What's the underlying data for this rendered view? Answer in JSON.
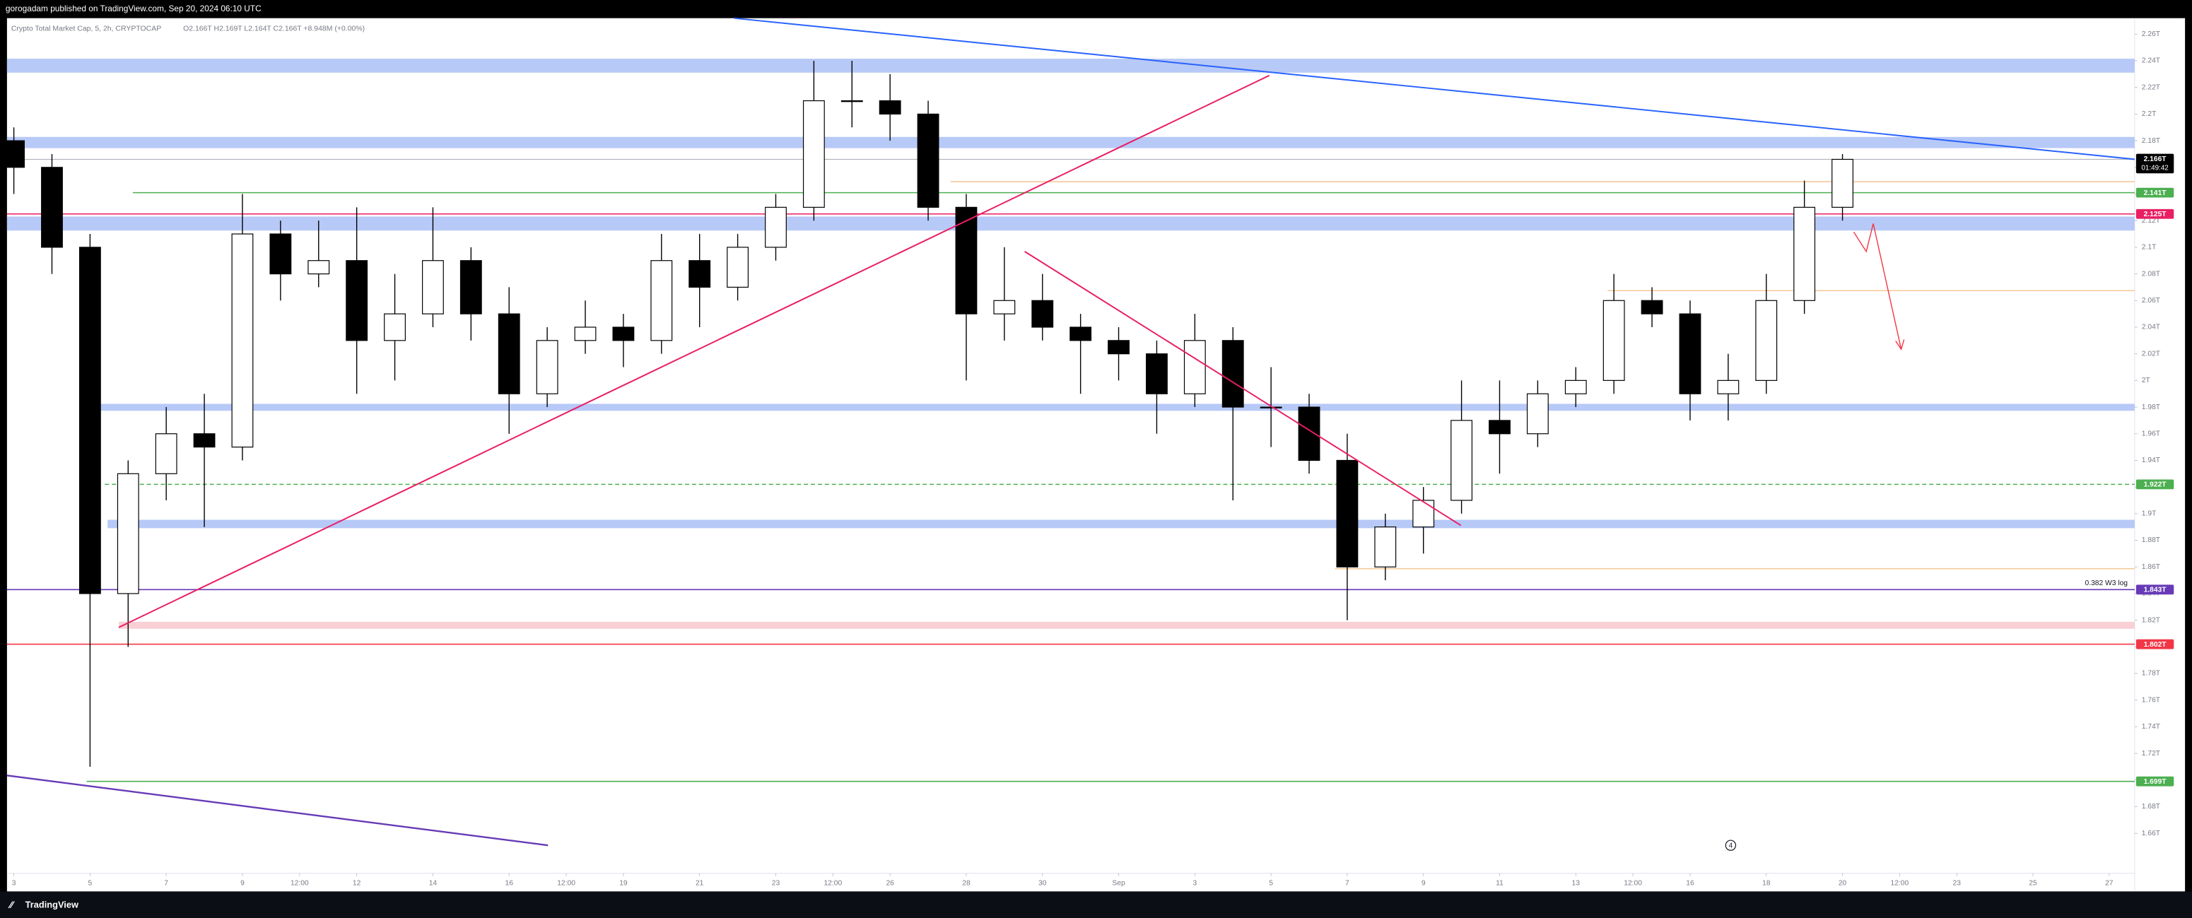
{
  "header": {
    "published": "gorogadam published on TradingView.com, Sep 20, 2024 06:10 UTC"
  },
  "legend": {
    "symbol": "Crypto Total Market Cap, 5, 2h, CRYPTOCAP",
    "ohlc": "O2.166T H2.169T L2.164T C2.166T +8.948M (+0.00%)"
  },
  "footer": {
    "brand": "TradingView"
  },
  "marker": {
    "label": "4"
  },
  "chart_data": {
    "type": "candlestick",
    "x": [
      3,
      4,
      5,
      6,
      7,
      8,
      9,
      10,
      11,
      12,
      13,
      14,
      15,
      16,
      17,
      18,
      19,
      20,
      21,
      22,
      23,
      24,
      25,
      26,
      27,
      28,
      29,
      30,
      31,
      32,
      33,
      34,
      35,
      36,
      37,
      38,
      39,
      40,
      41,
      42,
      43,
      44,
      45,
      46,
      47,
      48,
      49,
      50,
      51
    ],
    "open": [
      2.18,
      2.16,
      2.1,
      1.84,
      1.93,
      1.96,
      1.95,
      2.11,
      2.08,
      2.09,
      2.03,
      2.05,
      2.09,
      2.05,
      1.99,
      2.03,
      2.04,
      2.03,
      2.09,
      2.07,
      2.1,
      2.13,
      2.21,
      2.21,
      2.2,
      2.13,
      2.05,
      2.06,
      2.04,
      2.03,
      2.02,
      1.99,
      2.03,
      1.98,
      1.98,
      1.94,
      1.86,
      1.89,
      1.91,
      1.97,
      1.96,
      1.99,
      2.0,
      2.06,
      2.05,
      1.99,
      2.0,
      2.06,
      2.13
    ],
    "high": [
      2.19,
      2.17,
      2.11,
      1.94,
      1.98,
      1.99,
      2.14,
      2.12,
      2.12,
      2.13,
      2.08,
      2.13,
      2.1,
      2.07,
      2.04,
      2.06,
      2.05,
      2.11,
      2.11,
      2.11,
      2.14,
      2.24,
      2.24,
      2.23,
      2.21,
      2.14,
      2.1,
      2.08,
      2.05,
      2.04,
      2.03,
      2.05,
      2.04,
      2.01,
      1.99,
      1.96,
      1.9,
      1.92,
      2.0,
      2.0,
      2.0,
      2.01,
      2.08,
      2.07,
      2.06,
      2.02,
      2.08,
      2.15,
      2.17
    ],
    "low": [
      2.14,
      2.08,
      1.71,
      1.8,
      1.91,
      1.89,
      1.94,
      2.06,
      2.07,
      1.99,
      2.0,
      2.04,
      2.03,
      1.96,
      1.98,
      2.02,
      2.01,
      2.02,
      2.04,
      2.06,
      2.09,
      2.12,
      2.19,
      2.18,
      2.12,
      2.0,
      2.03,
      2.03,
      1.99,
      2.0,
      1.96,
      1.98,
      1.91,
      1.95,
      1.93,
      1.82,
      1.85,
      1.87,
      1.9,
      1.93,
      1.95,
      1.98,
      1.99,
      2.04,
      1.97,
      1.97,
      1.99,
      2.05,
      2.12
    ],
    "close": [
      2.16,
      2.1,
      1.84,
      1.93,
      1.96,
      1.95,
      2.11,
      2.08,
      2.09,
      2.03,
      2.05,
      2.09,
      2.05,
      1.99,
      2.03,
      2.04,
      2.03,
      2.09,
      2.07,
      2.1,
      2.13,
      2.21,
      2.21,
      2.2,
      2.13,
      2.05,
      2.06,
      2.04,
      2.03,
      2.02,
      1.99,
      2.03,
      1.98,
      1.98,
      1.94,
      1.86,
      1.89,
      1.91,
      1.97,
      1.96,
      1.99,
      2.0,
      2.06,
      2.05,
      1.99,
      2.0,
      2.06,
      2.13,
      2.166
    ],
    "up_color": "#ffffff",
    "down_color": "#000000",
    "outline_color": "#000000",
    "xlim": [
      2.82,
      58.67
    ],
    "xticks": [
      3,
      5,
      7,
      9,
      {
        "value": 10.5,
        "label": "12:00"
      },
      12,
      14,
      16,
      {
        "value": 17.5,
        "label": "12:00"
      },
      19,
      21,
      23,
      {
        "value": 24.5,
        "label": "12:00"
      },
      26,
      28,
      30,
      {
        "value": 32,
        "label": "Sep"
      },
      {
        "value": 34,
        "label": "3"
      },
      {
        "value": 36,
        "label": "5"
      },
      {
        "value": 38,
        "label": "7"
      },
      {
        "value": 40,
        "label": "9"
      },
      {
        "value": 42,
        "label": "11"
      },
      {
        "value": 44,
        "label": "13"
      },
      {
        "value": 45.5,
        "label": "12:00"
      },
      {
        "value": 47,
        "label": "16"
      },
      {
        "value": 49,
        "label": "18"
      },
      {
        "value": 51,
        "label": "20"
      },
      {
        "value": 52.5,
        "label": "12:00"
      },
      {
        "value": 54,
        "label": "23"
      },
      {
        "value": 56,
        "label": "25"
      },
      {
        "value": 58,
        "label": "27"
      }
    ],
    "ylim": [
      1.63,
      2.272
    ],
    "yticks": [
      {
        "value": 1.66,
        "label": "1.66T"
      },
      {
        "value": 1.68,
        "label": "1.68T"
      },
      {
        "value": 1.7,
        "label": "1.7T"
      },
      {
        "value": 1.72,
        "label": "1.72T"
      },
      {
        "value": 1.74,
        "label": "1.74T"
      },
      {
        "value": 1.76,
        "label": "1.76T"
      },
      {
        "value": 1.78,
        "label": "1.78T"
      },
      {
        "value": 1.8,
        "label": "1.8T"
      },
      {
        "value": 1.82,
        "label": "1.82T"
      },
      {
        "value": 1.84,
        "label": "1.84T"
      },
      {
        "value": 1.86,
        "label": "1.86T"
      },
      {
        "value": 1.88,
        "label": "1.88T"
      },
      {
        "value": 1.9,
        "label": "1.9T"
      },
      {
        "value": 1.92,
        "label": "1.92T"
      },
      {
        "value": 1.94,
        "label": "1.94T"
      },
      {
        "value": 1.96,
        "label": "1.96T"
      },
      {
        "value": 1.98,
        "label": "1.98T"
      },
      {
        "value": 2.0,
        "label": "2T"
      },
      {
        "value": 2.02,
        "label": "2.02T"
      },
      {
        "value": 2.04,
        "label": "2.04T"
      },
      {
        "value": 2.06,
        "label": "2.06T"
      },
      {
        "value": 2.08,
        "label": "2.08T"
      },
      {
        "value": 2.1,
        "label": "2.1T"
      },
      {
        "value": 2.12,
        "label": "2.12T"
      },
      {
        "value": 2.14,
        "label": "2.14T"
      },
      {
        "value": 2.16,
        "label": "2.16T"
      },
      {
        "value": 2.18,
        "label": "2.18T"
      },
      {
        "value": 2.2,
        "label": "2.2T"
      },
      {
        "value": 2.22,
        "label": "2.22T"
      },
      {
        "value": 2.24,
        "label": "2.24T"
      },
      {
        "value": 2.26,
        "label": "2.26T"
      }
    ],
    "grid": false,
    "last_price": {
      "label": "2.166T",
      "countdown": "01:49:42",
      "color": "#000000"
    },
    "levels": [
      {
        "value": 2.141,
        "label": "2.141T",
        "color": "#4caf50",
        "style": "solid"
      },
      {
        "value": 2.125,
        "label": "2.125T",
        "color": "#e91e63",
        "style": "solid"
      },
      {
        "value": 1.922,
        "label": "1.922T",
        "color": "#4caf50",
        "style": "dashed"
      },
      {
        "value": 1.843,
        "label": "1.843T",
        "color": "#673ab7",
        "style": "solid",
        "note": "0.382 W3 log"
      },
      {
        "value": 1.802,
        "label": "1.802T",
        "color": "#f23645",
        "style": "solid"
      },
      {
        "value": 1.699,
        "label": "1.699T",
        "color": "#4caf50",
        "style": "solid"
      }
    ]
  }
}
